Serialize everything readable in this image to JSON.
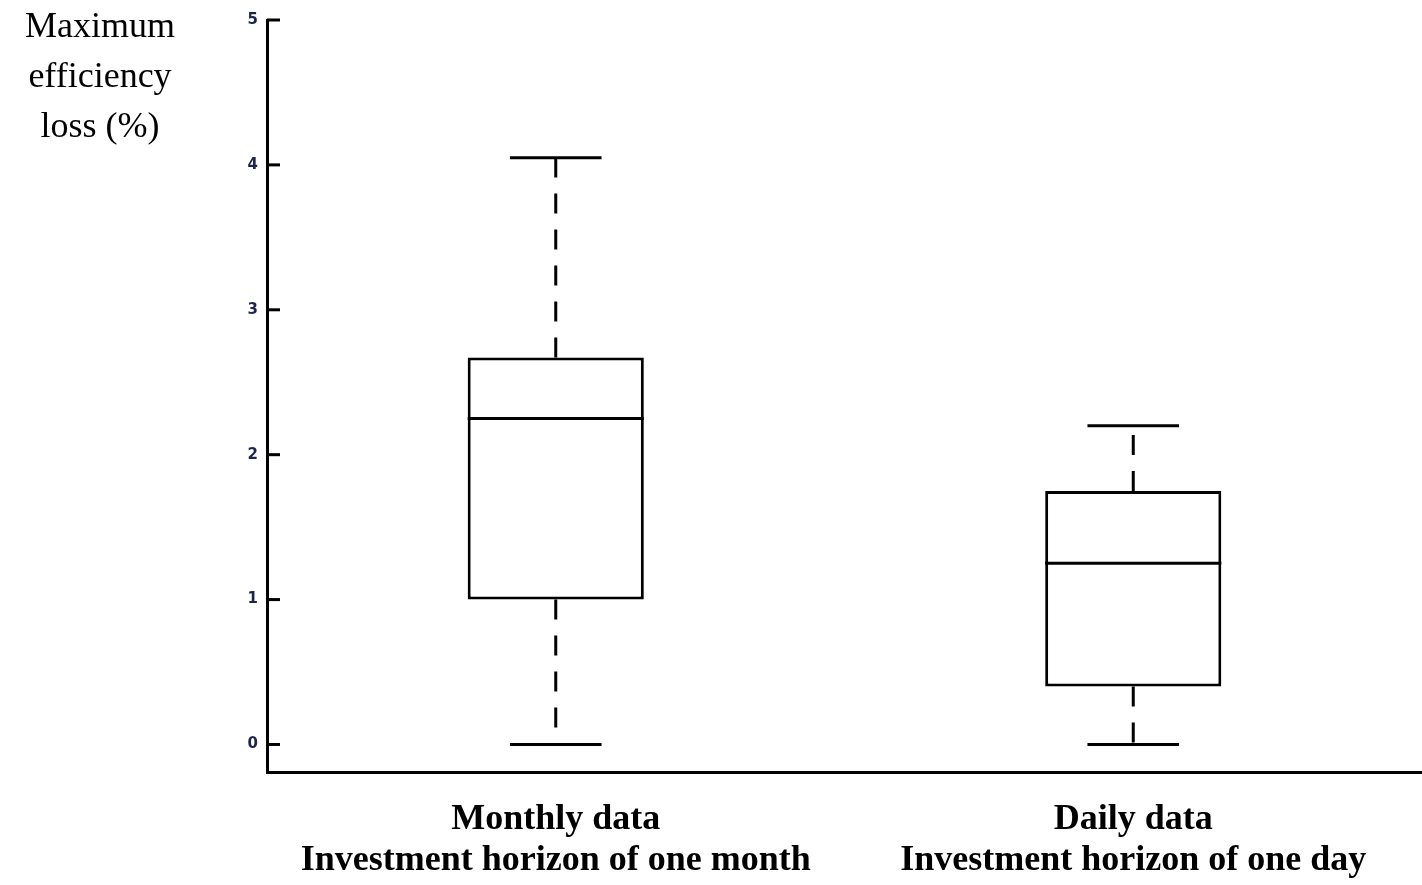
{
  "chart_data": {
    "type": "box",
    "ylabel": "Maximum efficiency loss (%)",
    "categories": [
      "Monthly data\nInvestment horizon of one month",
      "Daily data\nInvestment horizon of one day"
    ],
    "boxes": [
      {
        "low": 0,
        "q1": 1.0,
        "median": 2.25,
        "q3": 2.67,
        "high": 4.05
      },
      {
        "low": 0,
        "q1": 0.4,
        "median": 1.25,
        "q3": 1.75,
        "high": 2.2
      }
    ],
    "color": "#000000",
    "line_style": "dashed",
    "ylim": [
      -0.19,
      5
    ],
    "yticks": [
      0,
      1,
      2,
      3,
      4,
      5
    ]
  }
}
